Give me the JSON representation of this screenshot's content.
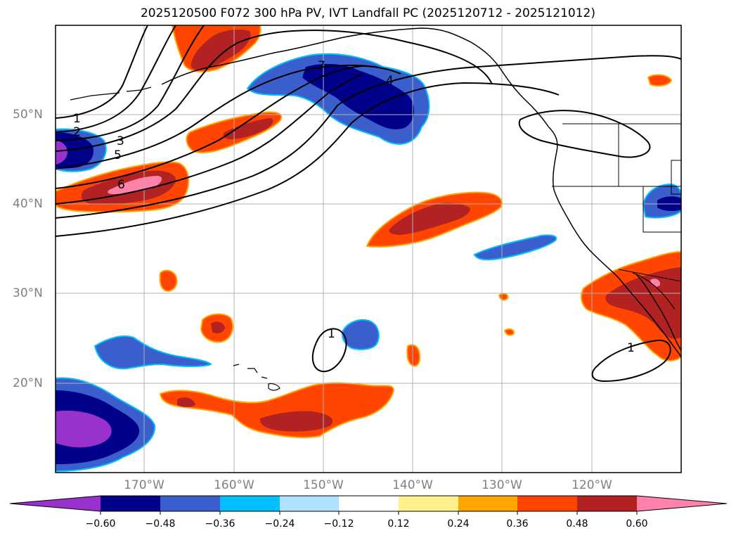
{
  "title": "2025120500 F072 300 hPa PV, IVT Landfall PC (2025120712 - 2025121012)",
  "map": {
    "lat_ticks": [
      "50°N",
      "40°N",
      "30°N",
      "20°N"
    ],
    "lon_ticks": [
      "170°W",
      "160°W",
      "150°W",
      "140°W",
      "130°W",
      "120°W"
    ],
    "contour_labels": [
      "1",
      "2",
      "3",
      "4",
      "5",
      "6",
      "7",
      "1",
      "1"
    ]
  },
  "colorbar": {
    "ticks": [
      "−0.60",
      "−0.48",
      "−0.36",
      "−0.24",
      "−0.12",
      "0.12",
      "0.24",
      "0.36",
      "0.48",
      "0.60"
    ],
    "colors": [
      "#9932cc",
      "#00008b",
      "#3a5fcd",
      "#00bfff",
      "#b0e2ff",
      "#ffffff",
      "#fff08b",
      "#ffa500",
      "#ff4500",
      "#b22222",
      "#ff82ab"
    ]
  }
}
